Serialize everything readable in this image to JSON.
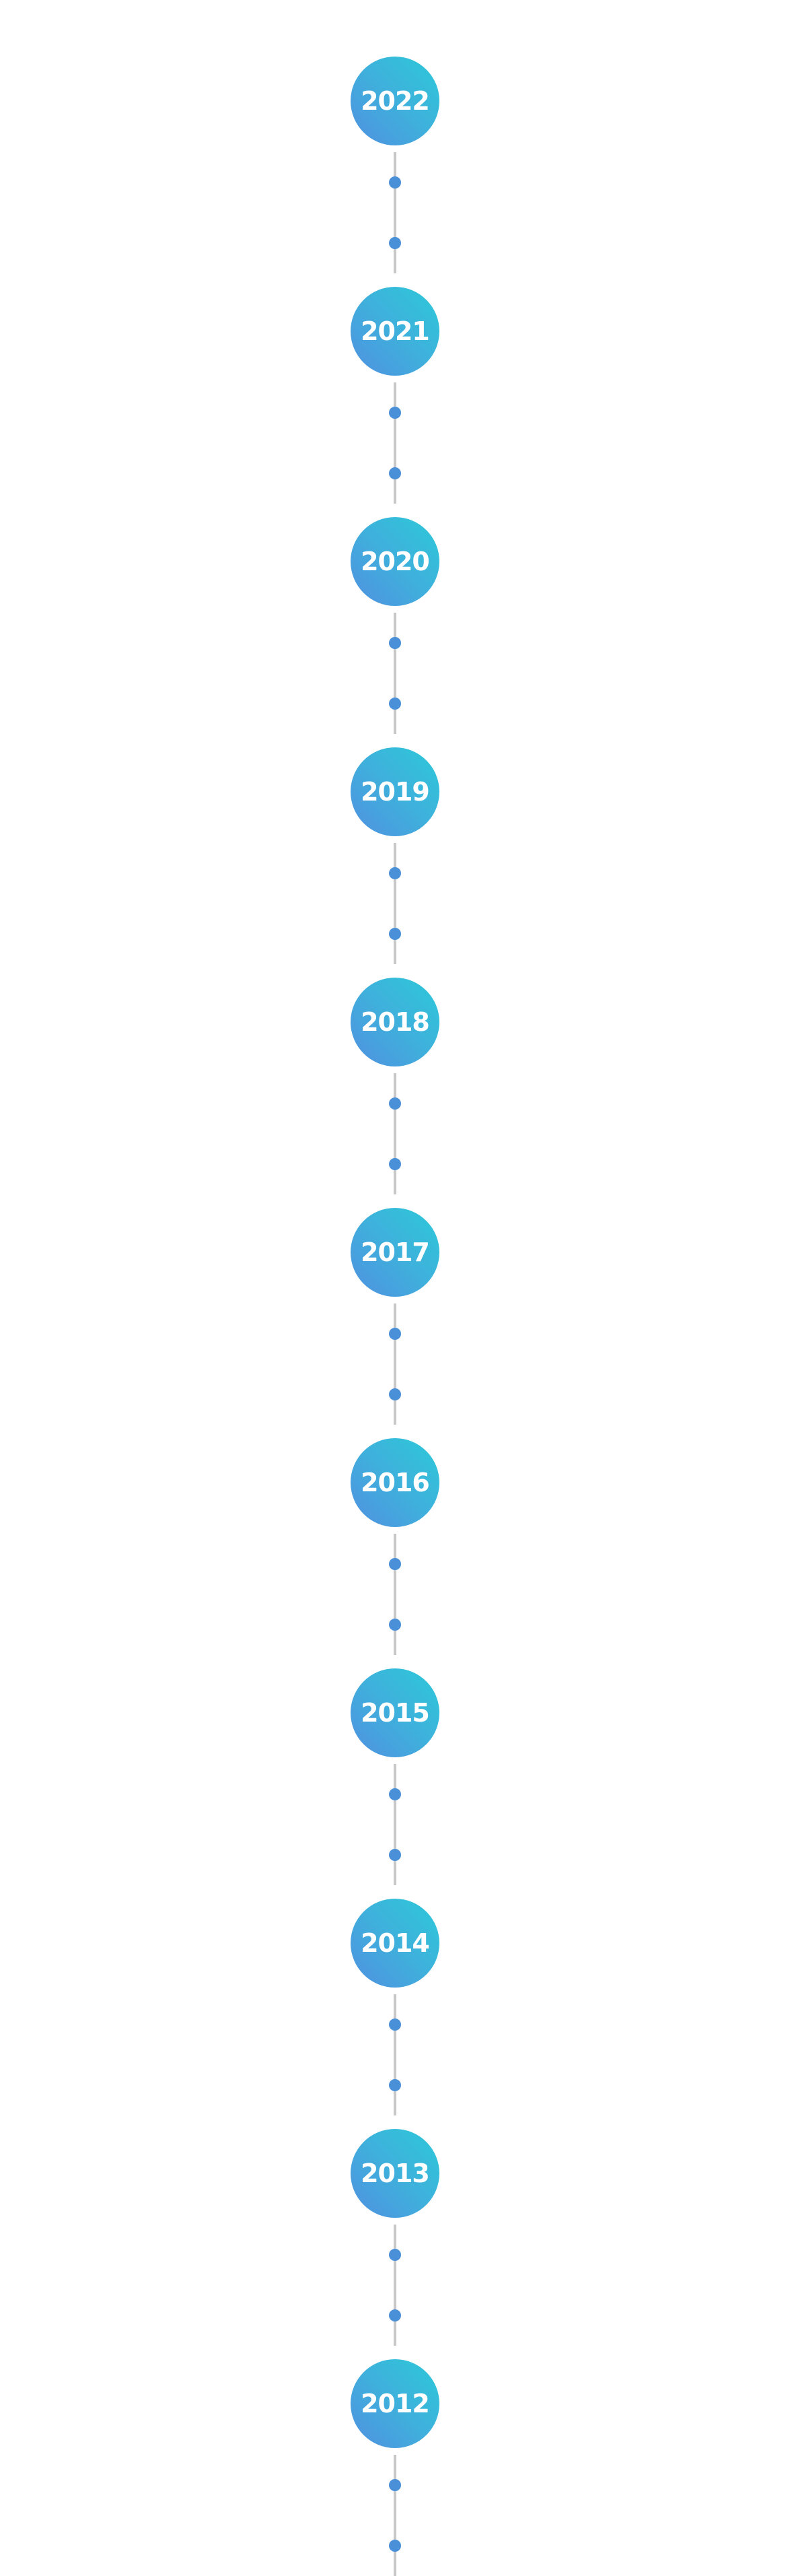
{
  "timeline": {
    "years": [
      "2022",
      "2021",
      "2020",
      "2019",
      "2018",
      "2017",
      "2016",
      "2015",
      "2014",
      "2013",
      "2012"
    ],
    "events_per_year": 2,
    "colors": {
      "gradient_start": "#5090e0",
      "gradient_end": "#2cc9d8",
      "line": "#c8c8c8",
      "dot": "#4a90d9",
      "year_text": "#ffffff"
    }
  }
}
